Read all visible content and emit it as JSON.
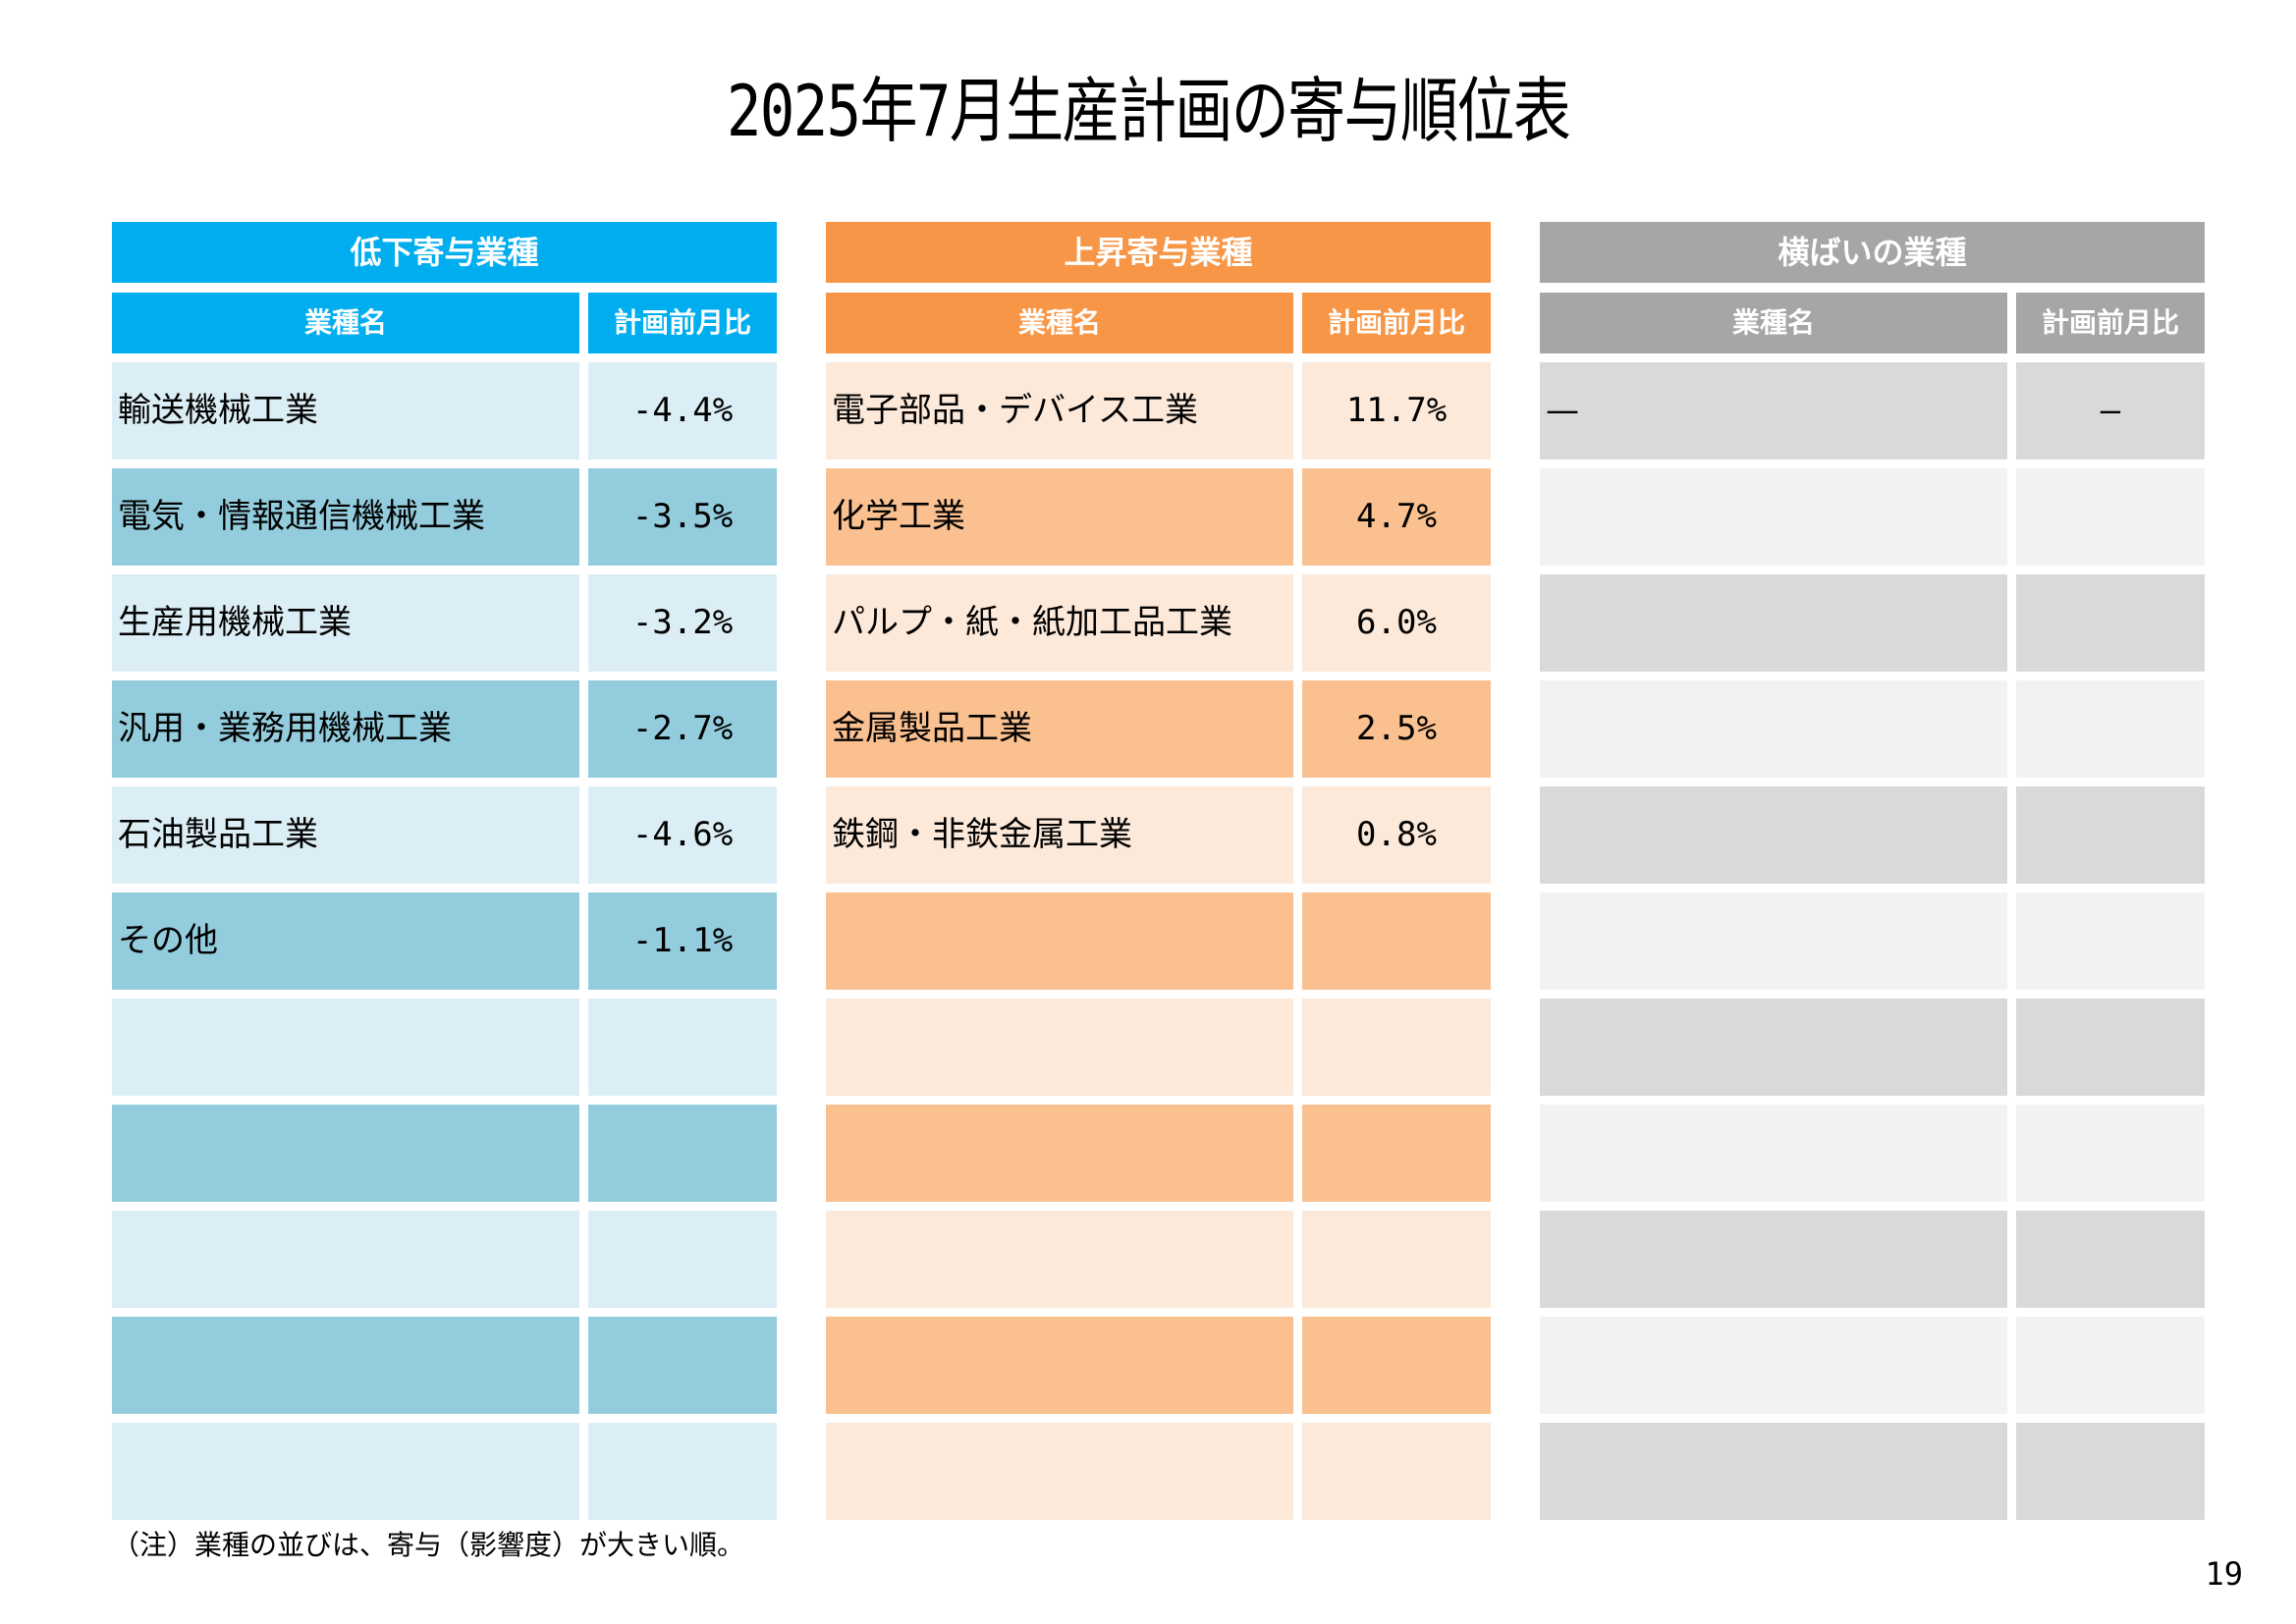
{
  "title": "2025年7月生産計画の寄与順位表",
  "panels": {
    "decline": {
      "header": "低下寄与業種",
      "col_name": "業種名",
      "col_value": "計画前月比",
      "rows": [
        {
          "name": "輸送機械工業",
          "value": "-4.4%"
        },
        {
          "name": "電気・情報通信機械工業",
          "value": "-3.5%"
        },
        {
          "name": "生産用機械工業",
          "value": "-3.2%"
        },
        {
          "name": "汎用・業務用機械工業",
          "value": "-2.7%"
        },
        {
          "name": "石油製品工業",
          "value": "-4.6%"
        },
        {
          "name": "その他",
          "value": "-1.1%"
        },
        {
          "name": "",
          "value": ""
        },
        {
          "name": "",
          "value": ""
        },
        {
          "name": "",
          "value": ""
        },
        {
          "name": "",
          "value": ""
        },
        {
          "name": "",
          "value": ""
        }
      ]
    },
    "rise": {
      "header": "上昇寄与業種",
      "col_name": "業種名",
      "col_value": "計画前月比",
      "rows": [
        {
          "name": "電子部品・デバイス工業",
          "value": "11.7%"
        },
        {
          "name": "化学工業",
          "value": "4.7%"
        },
        {
          "name": "パルプ・紙・紙加工品工業",
          "value": "6.0%"
        },
        {
          "name": "金属製品工業",
          "value": "2.5%"
        },
        {
          "name": "鉄鋼・非鉄金属工業",
          "value": "0.8%"
        },
        {
          "name": "",
          "value": ""
        },
        {
          "name": "",
          "value": ""
        },
        {
          "name": "",
          "value": ""
        },
        {
          "name": "",
          "value": ""
        },
        {
          "name": "",
          "value": ""
        },
        {
          "name": "",
          "value": ""
        }
      ]
    },
    "flat": {
      "header": "横ばいの業種",
      "col_name": "業種名",
      "col_value": "計画前月比",
      "rows": [
        {
          "name": "—",
          "value": "—"
        },
        {
          "name": "",
          "value": ""
        },
        {
          "name": "",
          "value": ""
        },
        {
          "name": "",
          "value": ""
        },
        {
          "name": "",
          "value": ""
        },
        {
          "name": "",
          "value": ""
        },
        {
          "name": "",
          "value": ""
        },
        {
          "name": "",
          "value": ""
        },
        {
          "name": "",
          "value": ""
        },
        {
          "name": "",
          "value": ""
        },
        {
          "name": "",
          "value": ""
        }
      ]
    }
  },
  "note": "（注）業種の並びは、寄与（影響度）が大きい順。",
  "page_number": "19",
  "colors": {
    "decline_header": "#00aeef",
    "rise_header": "#f79646",
    "flat_header": "#a6a6a6"
  }
}
